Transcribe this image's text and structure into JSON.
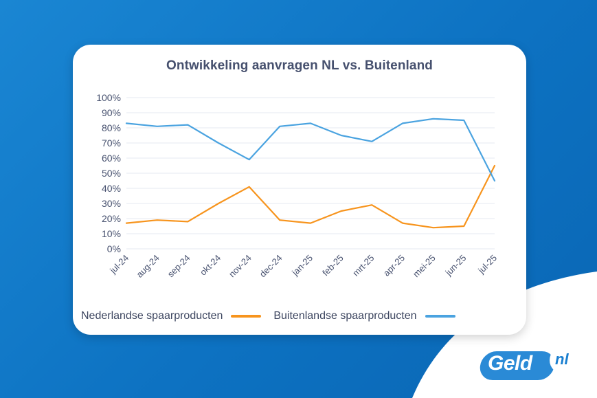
{
  "colors": {
    "background": "#1481cf",
    "card": "#ffffff",
    "nl_series": "#f7941d",
    "foreign_series": "#4aa3e0",
    "grid": "#e6e9f2",
    "text": "#46506e"
  },
  "chart_data": {
    "type": "line",
    "title": "Ontwikkeling aanvragen NL vs. Buitenland",
    "categories": [
      "jul-24",
      "aug-24",
      "sep-24",
      "okt-24",
      "nov-24",
      "dec-24",
      "jan-25",
      "feb-25",
      "mrt-25",
      "apr-25",
      "mei-25",
      "jun-25",
      "jul-25"
    ],
    "yticks": [
      "0%",
      "10%",
      "20%",
      "30%",
      "40%",
      "50%",
      "60%",
      "70%",
      "80%",
      "90%",
      "100%"
    ],
    "ylim": [
      0,
      100
    ],
    "grid": true,
    "legend_position": "bottom",
    "series": [
      {
        "name": "Nederlandse spaarproducten",
        "color": "#f7941d",
        "values": [
          17,
          19,
          18,
          30,
          41,
          19,
          17,
          25,
          29,
          17,
          14,
          15,
          55
        ]
      },
      {
        "name": "Buitenlandse spaarproducten",
        "color": "#4aa3e0",
        "values": [
          83,
          81,
          82,
          70,
          59,
          81,
          83,
          75,
          71,
          83,
          86,
          85,
          45
        ]
      }
    ]
  },
  "logo": {
    "text": "Geld",
    "badge": "nl"
  }
}
